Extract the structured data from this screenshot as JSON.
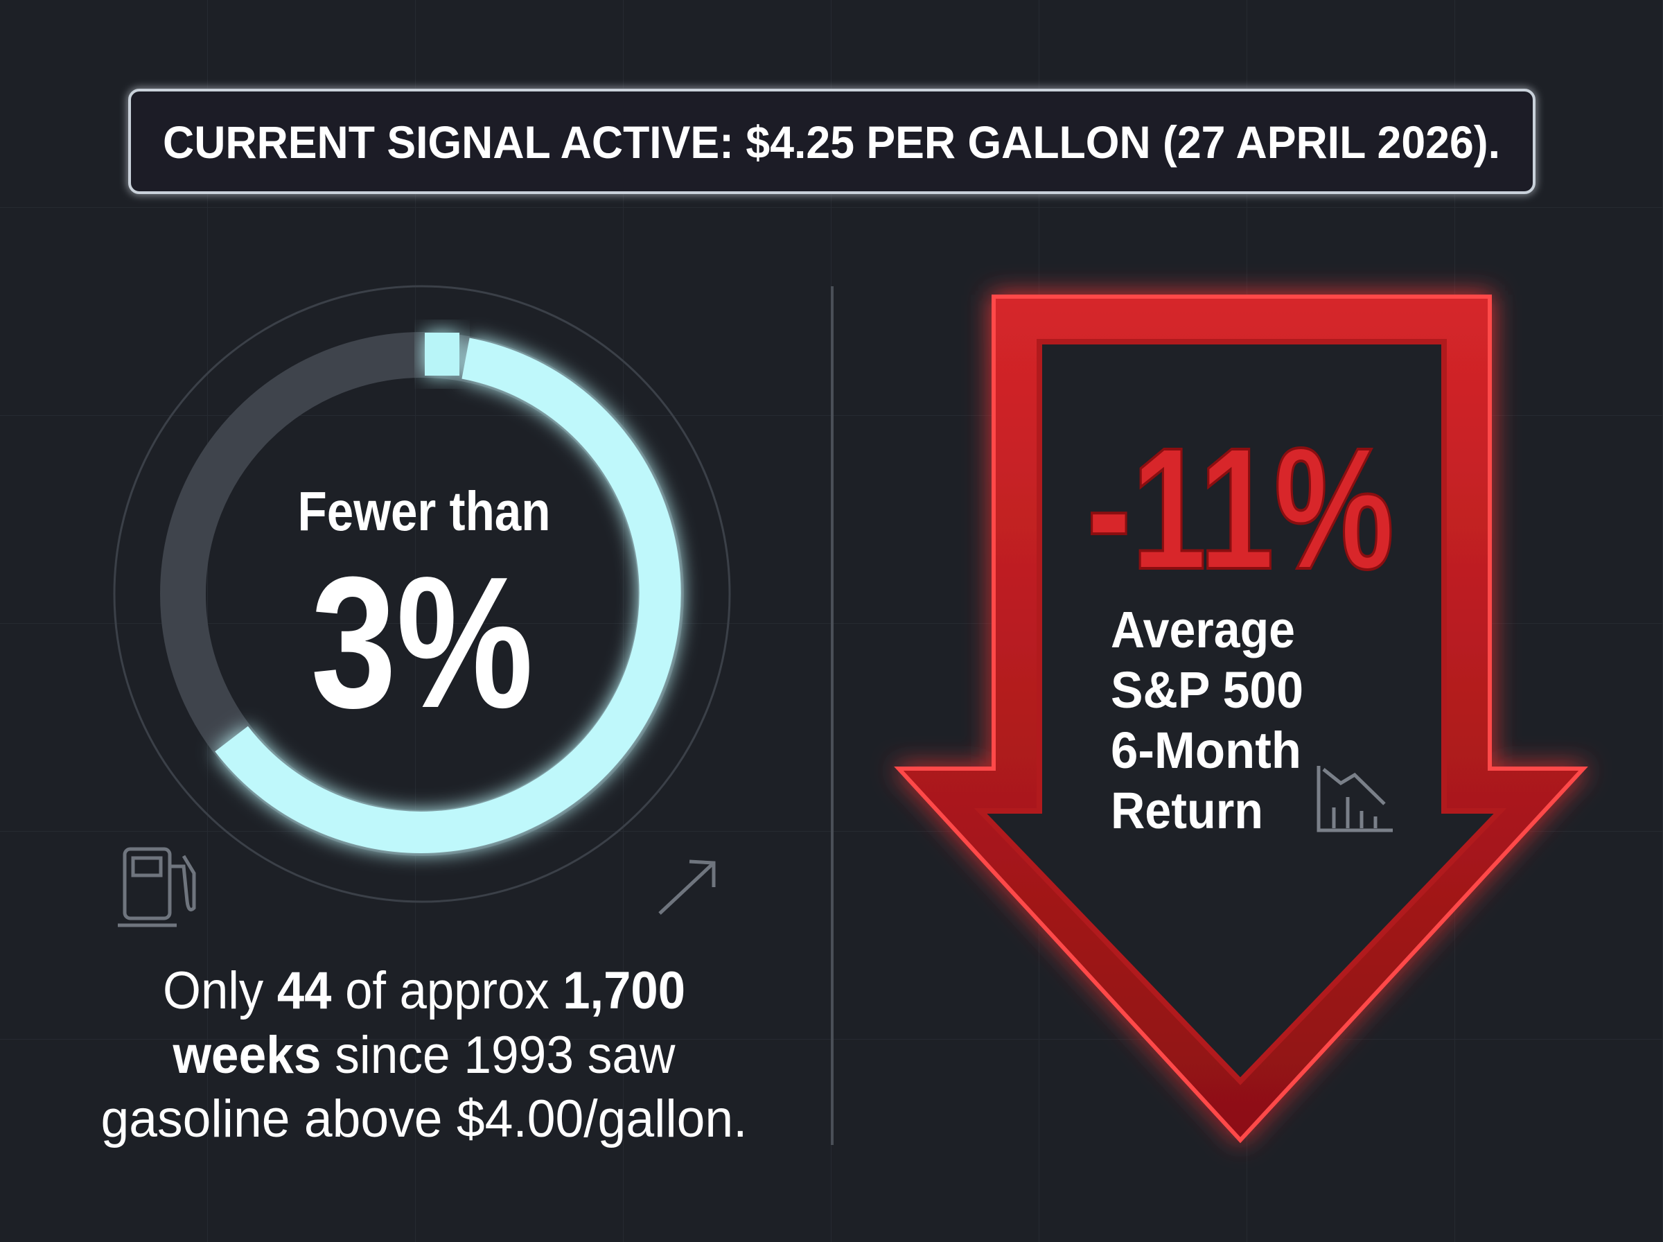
{
  "banner": {
    "text": "CURRENT SIGNAL ACTIVE: $4.25 PER GALLON (27 APRIL 2026)."
  },
  "gauge": {
    "prefix": "Fewer than",
    "value_label": "3%"
  },
  "caption": {
    "lines": [
      [
        {
          "text": "Only ",
          "bold": false
        },
        {
          "text": "44",
          "bold": true
        },
        {
          "text": " of approx ",
          "bold": false
        },
        {
          "text": "1,700",
          "bold": true
        }
      ],
      [
        {
          "text": "weeks",
          "bold": true
        },
        {
          "text": " since 1993 saw",
          "bold": false
        }
      ],
      [
        {
          "text": "gasoline above $4.00/gallon.",
          "bold": false
        }
      ]
    ]
  },
  "highlight": {
    "value_label": "-11%",
    "label_lines": [
      "Average",
      "S&P 500",
      "6-Month",
      "Return"
    ]
  }
}
